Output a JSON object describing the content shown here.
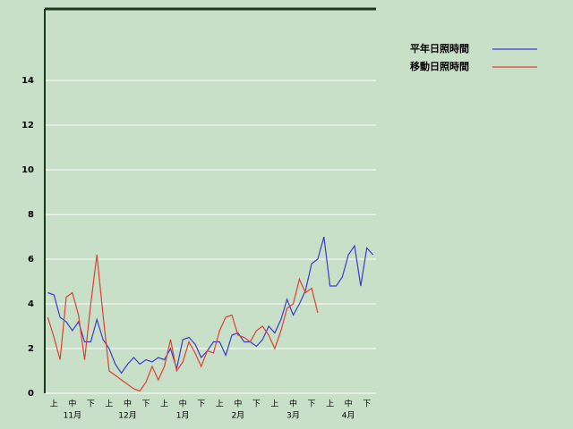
{
  "chart_data": {
    "type": "line",
    "categories": [
      null,
      "上",
      null,
      null,
      "中",
      null,
      null,
      "下",
      null,
      null,
      "上",
      null,
      null,
      "中",
      null,
      null,
      "下",
      null,
      null,
      "上",
      null,
      null,
      "中",
      null,
      null,
      "下",
      null,
      null,
      "上",
      null,
      null,
      "中",
      null,
      null,
      "下",
      null,
      null,
      "上",
      null,
      null,
      "中",
      null,
      null,
      "下",
      null,
      null,
      "上",
      null,
      null,
      "中",
      null,
      null,
      "下",
      null
    ],
    "x_group_labels": [
      "11月",
      "12月",
      "1月",
      "2月",
      "3月",
      "4月"
    ],
    "series": [
      {
        "name": "平年日照時間",
        "color": "#3c3ccc",
        "values": [
          4.5,
          4.4,
          3.4,
          3.2,
          2.8,
          3.2,
          2.3,
          2.3,
          3.3,
          2.4,
          2.0,
          1.3,
          0.9,
          1.3,
          1.6,
          1.3,
          1.5,
          1.4,
          1.6,
          1.5,
          2.0,
          1.1,
          2.4,
          2.5,
          2.2,
          1.6,
          1.9,
          2.3,
          2.3,
          1.7,
          2.6,
          2.7,
          2.3,
          2.3,
          2.1,
          2.4,
          3.0,
          2.7,
          3.3,
          4.2,
          3.5,
          4.0,
          4.6,
          5.8,
          6.0,
          7.0,
          4.8,
          4.8,
          5.2,
          6.2,
          6.6,
          4.8,
          6.5,
          6.2
        ]
      },
      {
        "name": "移動日照時間",
        "color": "#e04030",
        "values": [
          3.4,
          2.5,
          1.5,
          4.3,
          4.5,
          3.5,
          1.5,
          4.0,
          6.2,
          3.5,
          1.0,
          0.8,
          0.6,
          0.4,
          0.2,
          0.1,
          0.5,
          1.2,
          0.6,
          1.2,
          2.4,
          1.0,
          1.4,
          2.3,
          1.8,
          1.2,
          1.9,
          1.8,
          2.8,
          3.4,
          3.5,
          2.6,
          2.5,
          2.3,
          2.8,
          3.0,
          2.6,
          2.0,
          2.8,
          3.8,
          4.0,
          5.1,
          4.5,
          4.7,
          3.6,
          null,
          null,
          null,
          null,
          null,
          null,
          null,
          null,
          null
        ]
      }
    ],
    "ylim": [
      0,
      17.2
    ],
    "yticks": [
      0,
      2,
      4,
      6,
      8,
      10,
      12,
      14
    ],
    "grid": true,
    "legend": "top-right"
  }
}
